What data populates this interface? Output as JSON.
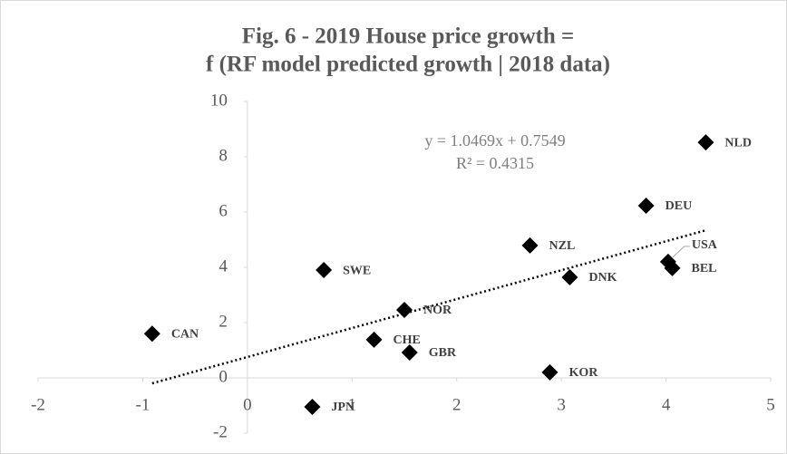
{
  "chart_data": {
    "type": "scatter",
    "title": [
      "Fig. 6 - 2019 House price growth =",
      "f (RF model predicted growth | 2018 data)"
    ],
    "labels": [
      "CAN",
      "SWE",
      "JPN",
      "NOR",
      "CHE",
      "GBR",
      "NZL",
      "DNK",
      "KOR",
      "DEU",
      "USA",
      "BEL",
      "NLD"
    ],
    "x": [
      -0.91,
      0.73,
      0.62,
      1.5,
      1.21,
      1.55,
      2.7,
      3.08,
      2.89,
      3.81,
      4.02,
      4.06,
      4.38
    ],
    "values": [
      1.6,
      3.9,
      -1.05,
      2.46,
      1.38,
      0.92,
      4.79,
      3.64,
      0.2,
      6.23,
      4.2,
      3.97,
      8.52
    ],
    "color": "#000000",
    "xlim": [
      -2,
      5
    ],
    "xticks": [
      -2,
      -1,
      0,
      1,
      2,
      3,
      4,
      5
    ],
    "ylim": [
      -2,
      10
    ],
    "yticks": [
      -2,
      0,
      2,
      4,
      6,
      8,
      10
    ],
    "trendline": {
      "slope": 1.0469,
      "intercept": 0.7549,
      "equation": "y = 1.0469x + 0.7549",
      "r2": "R² = 0.4315"
    }
  }
}
